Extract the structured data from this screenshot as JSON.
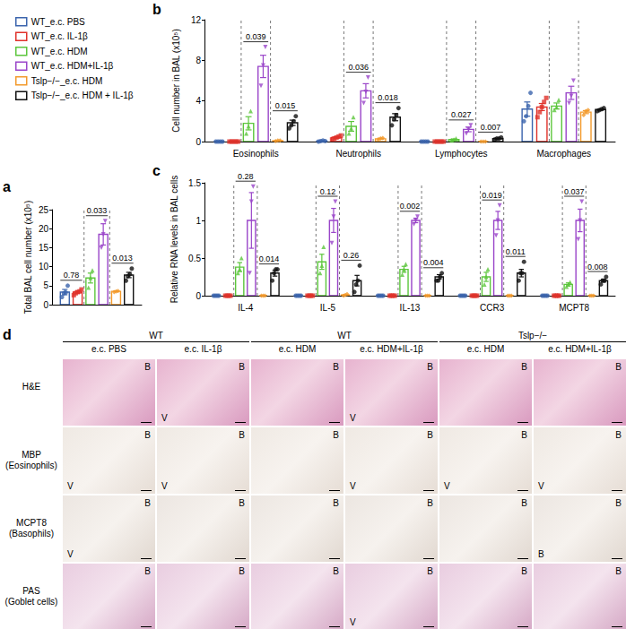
{
  "chart_data": [
    {
      "panel": "a",
      "type": "bar",
      "y_label": "Total BAL cell number (x10⁵)",
      "categories": [
        null
      ],
      "legend": "top-left",
      "grid": false,
      "ylim": [
        0,
        25
      ],
      "yticks": [
        0,
        5,
        10,
        15,
        20,
        25
      ],
      "series": [
        {
          "name": "WT_e.c. PBS",
          "color": "#3b64ad",
          "marker": "circle",
          "values": [
            3.3
          ],
          "errors": [
            0.7
          ],
          "points": [
            [
              2,
              3,
              3.2,
              5
            ]
          ]
        },
        {
          "name": "WT_e.c. IL-1β",
          "color": "#e0322b",
          "marker": "square",
          "values": [
            3.3
          ],
          "errors": [
            0.3
          ],
          "points": [
            [
              2.5,
              3,
              3.3,
              3.5,
              4
            ]
          ]
        },
        {
          "name": "WT_e.c. HDM",
          "color": "#5cc63c",
          "marker": "triangle",
          "values": [
            7
          ],
          "errors": [
            1.3
          ],
          "points": [
            [
              4.5,
              7,
              9
            ]
          ]
        },
        {
          "name": "WT_e.c. HDM+IL-1β",
          "color": "#9a45c9",
          "marker": "triangle_down",
          "values": [
            18.5
          ],
          "errors": [
            2.8
          ],
          "points": [
            [
              15,
              18.5,
              22
            ]
          ]
        },
        {
          "name": "Tslp−/−_e.c. HDM",
          "color": "#f39a2c",
          "marker": "diamond",
          "values": [
            3.5
          ],
          "errors": [
            0.1
          ],
          "points": [
            [
              3.3,
              3.5,
              3.6
            ]
          ]
        },
        {
          "name": "Tslp−/−_e.c. HDM + IL-1β",
          "color": "#111111",
          "marker": "circle",
          "values": [
            7.8
          ],
          "errors": [
            0.7
          ],
          "points": [
            [
              6.3,
              7.5,
              8,
              9.5
            ]
          ]
        }
      ],
      "comparisons": [
        {
          "category": null,
          "groups": [
            "WT_e.c. PBS",
            "WT_e.c. IL-1β"
          ],
          "p": 0.78
        },
        {
          "category": null,
          "groups": [
            "WT_e.c. HDM",
            "WT_e.c. HDM+IL-1β"
          ],
          "p": 0.033
        },
        {
          "category": null,
          "groups": [
            "Tslp−/−_e.c. HDM",
            "Tslp−/−_e.c. HDM + IL-1β"
          ],
          "p": 0.013
        }
      ]
    },
    {
      "panel": "b",
      "type": "bar",
      "y_label": "Cell number in BAL (x10⁵)",
      "categories": [
        "Eosinophils",
        "Neutrophils",
        "Lymphocytes",
        "Macrophages"
      ],
      "grid": false,
      "ylim": [
        0,
        12
      ],
      "yticks": [
        0,
        4,
        8,
        12
      ],
      "series": [
        {
          "name": "WT_e.c. PBS",
          "color": "#3b64ad",
          "marker": "circle",
          "values": [
            0,
            0.05,
            0,
            3.2
          ],
          "errors": [
            0,
            0.03,
            0,
            0.7
          ],
          "points": [
            [
              0,
              0,
              0,
              0
            ],
            [
              0,
              0.05,
              0.1,
              0.05
            ],
            [
              0,
              0,
              0,
              0
            ],
            [
              2,
              2.5,
              3.5,
              4.8
            ]
          ]
        },
        {
          "name": "WT_e.c. IL-1β",
          "color": "#e0322b",
          "marker": "square",
          "values": [
            0,
            0.4,
            0,
            3.4
          ],
          "errors": [
            0,
            0.08,
            0,
            0.35
          ],
          "points": [
            [
              0,
              0,
              0,
              0,
              0
            ],
            [
              0.2,
              0.3,
              0.4,
              0.5,
              0.6
            ],
            [
              0,
              0,
              0,
              0,
              0
            ],
            [
              2.4,
              2.9,
              3.4,
              3.9,
              4.3
            ]
          ]
        },
        {
          "name": "WT_e.c. HDM",
          "color": "#5cc63c",
          "marker": "triangle",
          "values": [
            1.8,
            1.5,
            0.2,
            3.5
          ],
          "errors": [
            0.65,
            0.48,
            0.06,
            0.3
          ],
          "points": [
            [
              0.8,
              1.5,
              3
            ],
            [
              0.8,
              1.3,
              2.4
            ],
            [
              0.1,
              0.2,
              0.3
            ],
            [
              3.1,
              3.4,
              4.1
            ]
          ]
        },
        {
          "name": "WT_e.c. HDM+IL-1β",
          "color": "#9a45c9",
          "marker": "triangle_down",
          "values": [
            7.4,
            5,
            1.2,
            4.8
          ],
          "errors": [
            1.1,
            0.7,
            0.23,
            0.65
          ],
          "points": [
            [
              5.5,
              7.5,
              9.3
            ],
            [
              3.8,
              4.9,
              6.3
            ],
            [
              0.8,
              1.2,
              1.6
            ],
            [
              3.8,
              4.5,
              6
            ]
          ]
        },
        {
          "name": "Tslp−/−_e.c. HDM",
          "color": "#f39a2c",
          "marker": "diamond",
          "values": [
            0.08,
            0.28,
            0,
            2.9
          ],
          "errors": [
            0.02,
            0.05,
            0,
            0.15
          ],
          "points": [
            [
              0.05,
              0.1,
              0.1
            ],
            [
              0.2,
              0.3,
              0.35
            ],
            [
              0,
              0,
              0
            ],
            [
              2.6,
              3,
              3.1
            ]
          ]
        },
        {
          "name": "Tslp−/−_e.c. HDM + IL-1β",
          "color": "#111111",
          "marker": "circle",
          "values": [
            1.85,
            2.4,
            0.3,
            3.15
          ],
          "errors": [
            0.26,
            0.35,
            0.04,
            0.06
          ],
          "points": [
            [
              1.3,
              1.6,
              2,
              2.5
            ],
            [
              1.6,
              2.2,
              2.6,
              3.3
            ],
            [
              0.2,
              0.3,
              0.3,
              0.4
            ],
            [
              3,
              3.1,
              3.2,
              3.3
            ]
          ]
        }
      ],
      "comparisons": [
        {
          "category": "Eosinophils",
          "groups": [
            "WT_e.c. HDM",
            "WT_e.c. HDM+IL-1β"
          ],
          "p": 0.039
        },
        {
          "category": "Eosinophils",
          "groups": [
            "Tslp−/−_e.c. HDM",
            "Tslp−/−_e.c. HDM + IL-1β"
          ],
          "p": 0.015
        },
        {
          "category": "Neutrophils",
          "groups": [
            "WT_e.c. HDM",
            "WT_e.c. HDM+IL-1β"
          ],
          "p": 0.036
        },
        {
          "category": "Neutrophils",
          "groups": [
            "Tslp−/−_e.c. HDM",
            "Tslp−/−_e.c. HDM + IL-1β"
          ],
          "p": 0.018
        },
        {
          "category": "Lymphocytes",
          "groups": [
            "WT_e.c. HDM",
            "WT_e.c. HDM+IL-1β"
          ],
          "p": 0.027
        },
        {
          "category": "Lymphocytes",
          "groups": [
            "Tslp−/−_e.c. HDM",
            "Tslp−/−_e.c. HDM + IL-1β"
          ],
          "p": 0.007
        }
      ]
    },
    {
      "panel": "c",
      "type": "bar",
      "y_label": "Relative RNA levels in BAL cells",
      "categories": [
        "IL-4",
        "IL-5",
        "IL-13",
        "CCR3",
        "MCPT8"
      ],
      "grid": false,
      "ylim": [
        0,
        1.5
      ],
      "yticks": [
        0,
        0.5,
        1,
        1.5
      ],
      "series": [
        {
          "name": "WT_e.c. PBS",
          "color": "#3b64ad",
          "marker": "circle",
          "values": [
            0,
            0,
            0,
            0,
            0
          ],
          "errors": [
            0,
            0,
            0,
            0,
            0
          ],
          "points": [
            [
              0,
              0,
              0,
              0
            ],
            [
              0,
              0,
              0,
              0
            ],
            [
              0,
              0,
              0,
              0
            ],
            [
              0,
              0,
              0,
              0
            ],
            [
              0,
              0,
              0,
              0
            ]
          ]
        },
        {
          "name": "WT_e.c. IL-1β",
          "color": "#e0322b",
          "marker": "square",
          "values": [
            0,
            0,
            0,
            0,
            0
          ],
          "errors": [
            0,
            0,
            0,
            0,
            0
          ],
          "points": [
            [
              0,
              0,
              0,
              0
            ],
            [
              0,
              0,
              0,
              0
            ],
            [
              0,
              0,
              0,
              0
            ],
            [
              0,
              0,
              0,
              0
            ],
            [
              0,
              0,
              0,
              0
            ]
          ]
        },
        {
          "name": "WT_e.c. HDM",
          "color": "#5cc63c",
          "marker": "triangle",
          "values": [
            0.38,
            0.45,
            0.35,
            0.25,
            0.15
          ],
          "errors": [
            0.06,
            0.1,
            0.04,
            0.06,
            0.02
          ],
          "points": [
            [
              0.3,
              0.35,
              0.5
            ],
            [
              0.3,
              0.4,
              0.65
            ],
            [
              0.28,
              0.35,
              0.42
            ],
            [
              0.15,
              0.25,
              0.35
            ],
            [
              0.12,
              0.15,
              0.18
            ]
          ]
        },
        {
          "name": "WT_e.c. HDM+IL-1β",
          "color": "#9a45c9",
          "marker": "triangle_down",
          "values": [
            1,
            1,
            1,
            1,
            1
          ],
          "errors": [
            0.37,
            0.16,
            0.03,
            0.12,
            0.15
          ],
          "points": [
            [
              0.3,
              1.25,
              1.45
            ],
            [
              0.7,
              1.05,
              1.25
            ],
            [
              0.95,
              1,
              1.05
            ],
            [
              0.8,
              1,
              1.2
            ],
            [
              0.75,
              1,
              1.25
            ]
          ]
        },
        {
          "name": "Tslp−/−_e.c. HDM",
          "color": "#f39a2c",
          "marker": "diamond",
          "values": [
            0,
            0.01,
            0,
            0,
            0
          ],
          "errors": [
            0,
            0,
            0,
            0,
            0
          ],
          "points": [
            [
              0,
              0,
              0
            ],
            [
              0,
              0.01,
              0.02
            ],
            [
              0,
              0,
              0
            ],
            [
              0,
              0,
              0
            ],
            [
              0,
              0,
              0
            ]
          ]
        },
        {
          "name": "Tslp−/−_e.c. HDM + IL-1β",
          "color": "#111111",
          "marker": "circle",
          "values": [
            0.3,
            0.2,
            0.25,
            0.3,
            0.2
          ],
          "errors": [
            0.04,
            0.07,
            0.03,
            0.05,
            0.02
          ],
          "points": [
            [
              0.2,
              0.3,
              0.35,
              0.35
            ],
            [
              0.05,
              0.15,
              0.2,
              0.4
            ],
            [
              0.2,
              0.2,
              0.25,
              0.3
            ],
            [
              0.2,
              0.3,
              0.3,
              0.45
            ],
            [
              0.15,
              0.2,
              0.2,
              0.25
            ]
          ]
        }
      ],
      "comparisons": [
        {
          "category": "IL-4",
          "groups": [
            "WT_e.c. HDM",
            "WT_e.c. HDM+IL-1β"
          ],
          "p": 0.28
        },
        {
          "category": "IL-4",
          "groups": [
            "Tslp−/−_e.c. HDM",
            "Tslp−/−_e.c. HDM + IL-1β"
          ],
          "p": 0.014
        },
        {
          "category": "IL-5",
          "groups": [
            "WT_e.c. HDM",
            "WT_e.c. HDM+IL-1β"
          ],
          "p": 0.12
        },
        {
          "category": "IL-5",
          "groups": [
            "Tslp−/−_e.c. HDM",
            "Tslp−/−_e.c. HDM + IL-1β"
          ],
          "p": 0.26
        },
        {
          "category": "IL-13",
          "groups": [
            "WT_e.c. HDM",
            "WT_e.c. HDM+IL-1β"
          ],
          "p": 0.002
        },
        {
          "category": "IL-13",
          "groups": [
            "Tslp−/−_e.c. HDM",
            "Tslp−/−_e.c. HDM + IL-1β"
          ],
          "p": 0.004
        },
        {
          "category": "CCR3",
          "groups": [
            "WT_e.c. HDM",
            "WT_e.c. HDM+IL-1β"
          ],
          "p": 0.019
        },
        {
          "category": "CCR3",
          "groups": [
            "Tslp−/−_e.c. HDM",
            "Tslp−/−_e.c. HDM + IL-1β"
          ],
          "p": 0.011
        },
        {
          "category": "MCPT8",
          "groups": [
            "WT_e.c. HDM",
            "WT_e.c. HDM+IL-1β"
          ],
          "p": 0.037
        },
        {
          "category": "MCPT8",
          "groups": [
            "Tslp−/−_e.c. HDM",
            "Tslp−/−_e.c. HDM + IL-1β"
          ],
          "p": 0.008
        }
      ]
    }
  ],
  "panel_d": {
    "panel": "d",
    "genotype_headers": [
      {
        "label": "WT",
        "span": 2
      },
      {
        "label": "WT",
        "span": 2
      },
      {
        "label": "Tslp−/−",
        "span": 2
      }
    ],
    "column_headers": [
      "e.c. PBS",
      "e.c. IL-1β",
      "e.c. HDM",
      "e.c. HDM+IL-1β",
      "e.c. HDM",
      "e.c. HDM+IL-1β"
    ],
    "rows": [
      {
        "label": "H&E",
        "sublabel": null,
        "cells": [
          [
            "B"
          ],
          [
            "B",
            "V"
          ],
          [
            "B"
          ],
          [
            "B",
            "V"
          ],
          [
            "B"
          ],
          [
            "B"
          ]
        ]
      },
      {
        "label": "MBP",
        "sublabel": "(Eosinophils)",
        "cells": [
          [
            "B",
            "V"
          ],
          [
            "B",
            "V"
          ],
          [
            "B"
          ],
          [
            "B",
            "V"
          ],
          [
            "B",
            "V"
          ],
          [
            "B",
            "V"
          ]
        ]
      },
      {
        "label": "MCPT8",
        "sublabel": "(Basophils)",
        "cells": [
          [
            "B",
            "V"
          ],
          [
            "B"
          ],
          [
            "B"
          ],
          [
            "B"
          ],
          [
            "B"
          ],
          [
            "B",
            "B"
          ]
        ]
      },
      {
        "label": "PAS",
        "sublabel": "(Goblet cells)",
        "cells": [
          [
            "B"
          ],
          [
            "B"
          ],
          [
            "B"
          ],
          [
            "B",
            "V"
          ],
          [
            "B"
          ],
          [
            "B"
          ]
        ]
      }
    ]
  }
}
